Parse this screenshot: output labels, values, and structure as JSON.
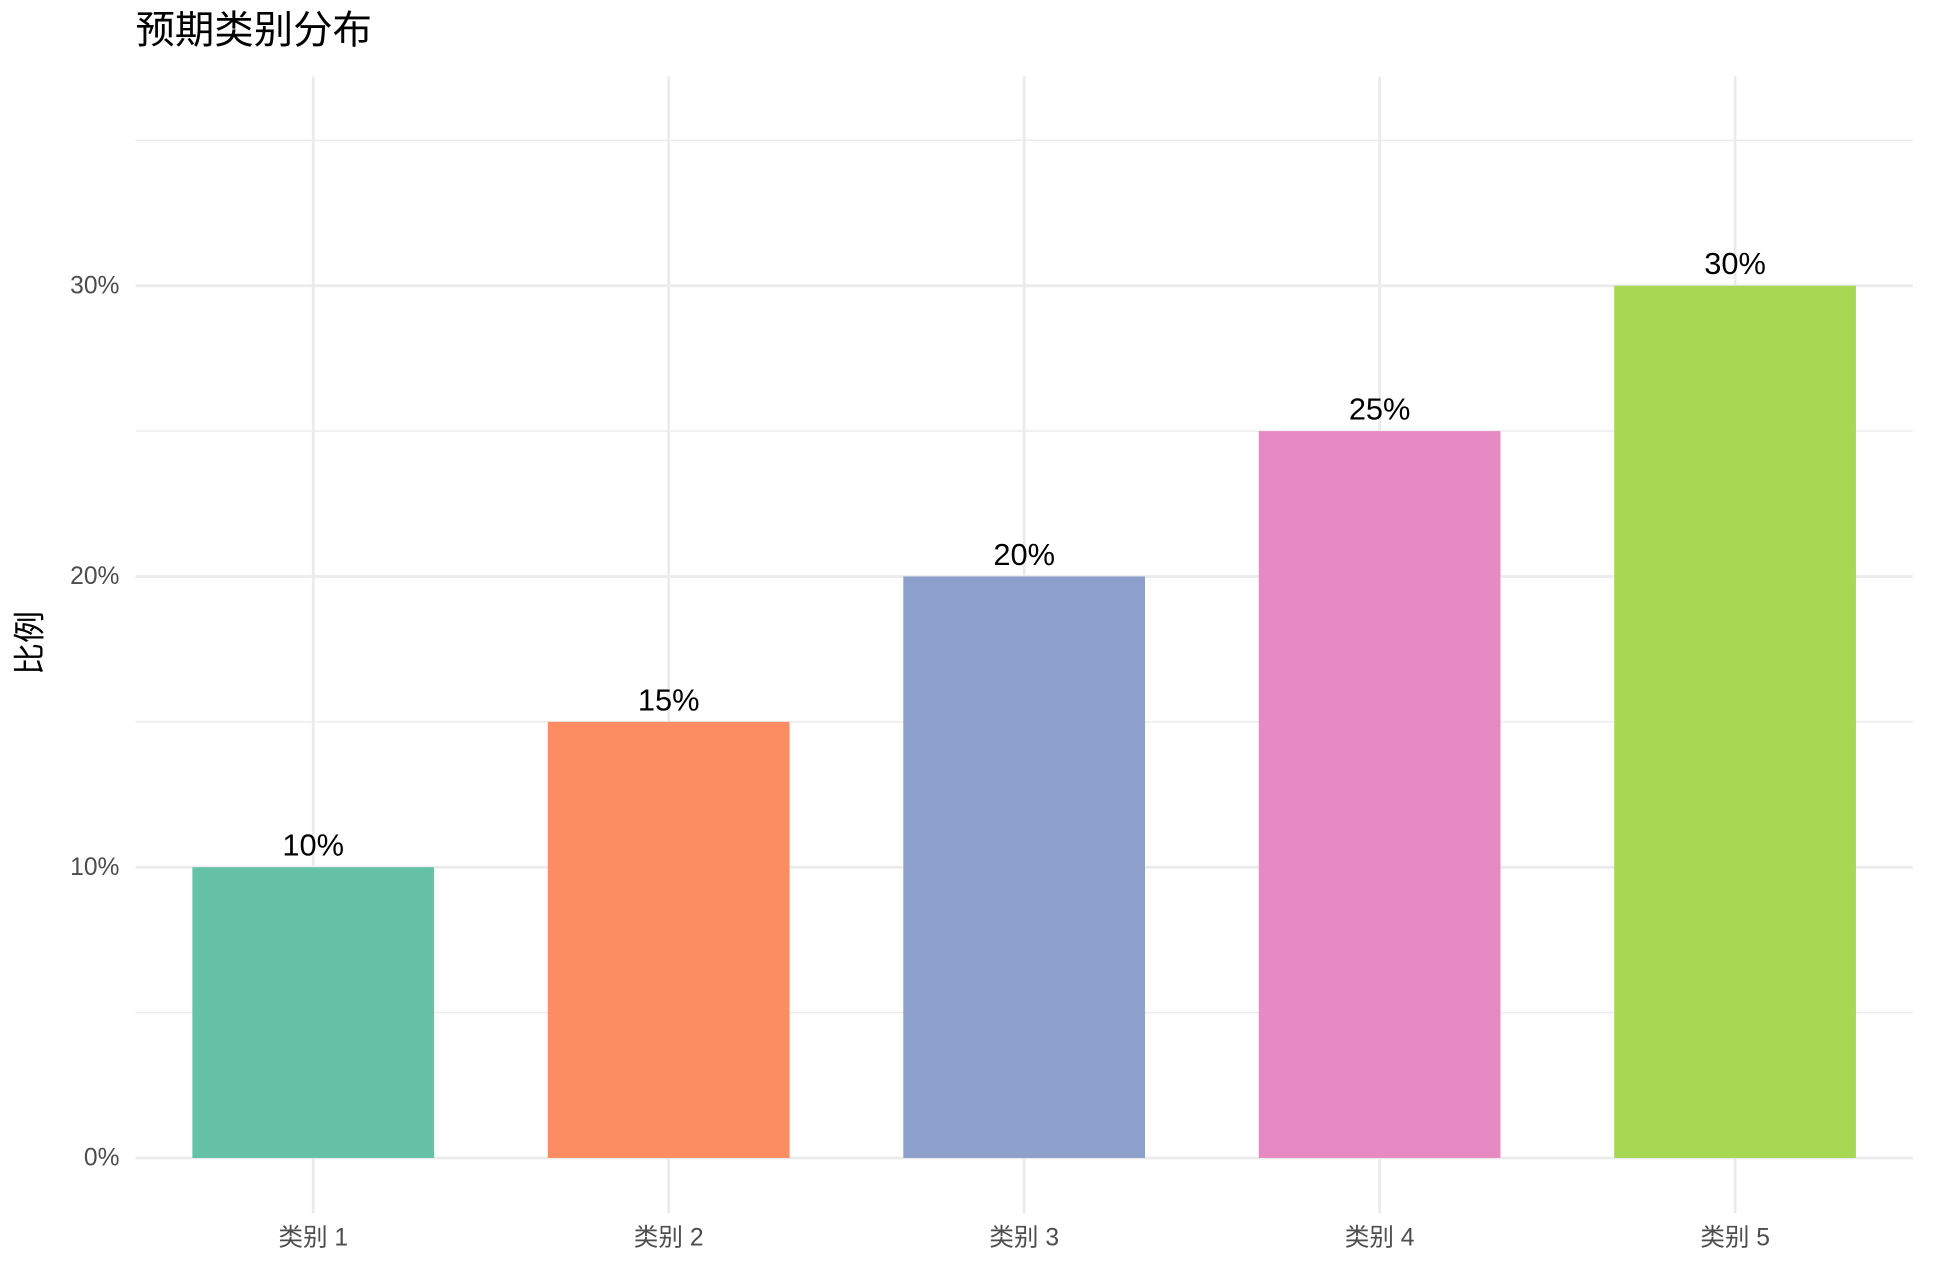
{
  "chart_data": {
    "type": "bar",
    "title": "预期类别分布",
    "y_label": "比例",
    "categories": [
      "类别 1",
      "类别 2",
      "类别 3",
      "类别 4",
      "类别 5"
    ],
    "values": [
      10,
      15,
      20,
      25,
      30
    ],
    "value_labels": [
      "10%",
      "15%",
      "20%",
      "25%",
      "30%"
    ],
    "colors": [
      "#66c2a5",
      "#fc8d62",
      "#8da0cb",
      "#e78ac3",
      "#a6d854"
    ],
    "ylim": [
      -1.9,
      37.2
    ],
    "yticks": [
      {
        "value": 0,
        "label": "0%"
      },
      {
        "value": 10,
        "label": "10%"
      },
      {
        "value": 20,
        "label": "20%"
      },
      {
        "value": 30,
        "label": "30%"
      }
    ],
    "yminor": [
      5,
      15,
      25,
      35
    ],
    "grid": true
  }
}
